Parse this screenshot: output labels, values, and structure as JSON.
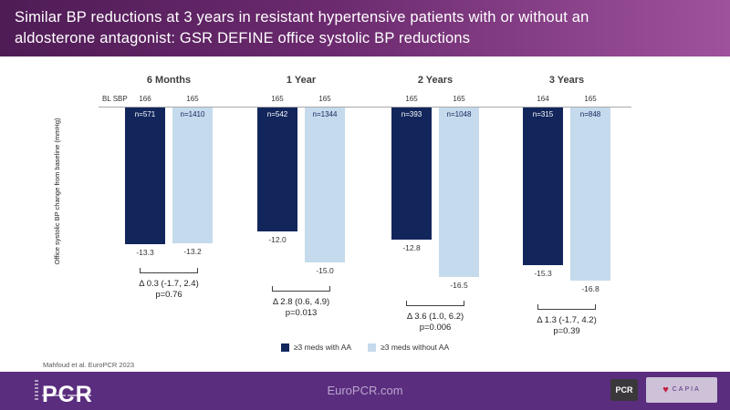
{
  "header": {
    "title_line1": "Similar BP reductions at 3 years in resistant hypertensive patients with or without an",
    "title_line2": "aldosterone antagonist: GSR DEFINE office systolic BP reductions"
  },
  "chart_data": {
    "type": "bar",
    "ylabel": "Office systolic BP change from baseline (mmHg)",
    "bl_sbp_row_label": "BL SBP",
    "ylim": [
      -17,
      0
    ],
    "orientation": "downward bars from zero baseline",
    "legend": [
      {
        "label": "≥3 meds with AA",
        "color": "#12265c"
      },
      {
        "label": "≥3 meds without AA",
        "color": "#c5daec"
      }
    ],
    "series_names": [
      "≥3 meds with AA",
      "≥3 meds without AA"
    ],
    "groups": [
      {
        "label": "6 Months",
        "bl_sbp": [
          "166",
          "165"
        ],
        "n": [
          "n=571",
          "n=1410"
        ],
        "values": [
          -13.3,
          -13.2
        ],
        "delta": "Δ 0.3 (-1.7, 2.4)",
        "p": "p=0.76"
      },
      {
        "label": "1 Year",
        "bl_sbp": [
          "165",
          "165"
        ],
        "n": [
          "n=542",
          "n=1344"
        ],
        "values": [
          -12.0,
          -15.0
        ],
        "delta": "Δ 2.8 (0.6, 4.9)",
        "p": "p=0.013"
      },
      {
        "label": "2 Years",
        "bl_sbp": [
          "165",
          "165"
        ],
        "n": [
          "n=393",
          "n=1048"
        ],
        "values": [
          -12.8,
          -16.5
        ],
        "delta": "Δ 3.6 (1.0, 6.2)",
        "p": "p=0.006"
      },
      {
        "label": "3 Years",
        "bl_sbp": [
          "164",
          "165"
        ],
        "n": [
          "n=315",
          "n=848"
        ],
        "values": [
          -15.3,
          -16.8
        ],
        "delta": "Δ 1.3 (-1.7, 4.2)",
        "p": "p=0.39"
      }
    ]
  },
  "colors": {
    "bar_dark": "#12265c",
    "bar_light": "#c5daec",
    "n_text_on_dark": "#ffffff",
    "n_text_on_light": "#12265c",
    "header_gradient_left": "#4f1c56",
    "header_gradient_right": "#9e529c",
    "footer_purple": "#5a2d7e"
  },
  "reference": "Mahfoud et al. EuroPCR 2023",
  "footer": {
    "pcr_wordmark": "PCR",
    "site": "EuroPCR.com",
    "pcr_logo_small": "PCR",
    "partner_logo_text": "CAPIA",
    "partner_logo_subtext": "heart-logo",
    "heart_icon": "♥"
  }
}
